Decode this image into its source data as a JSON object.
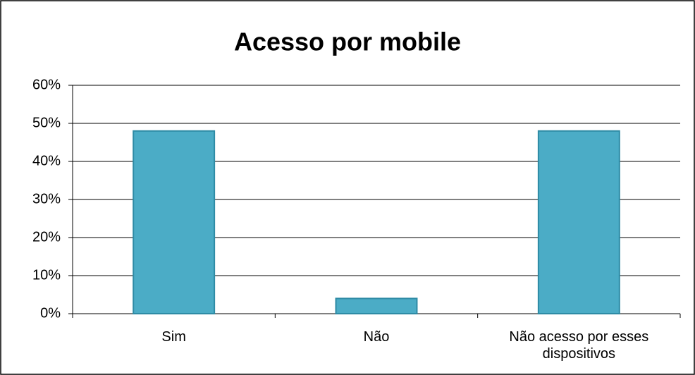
{
  "chart_data": {
    "type": "bar",
    "title": "Acesso por mobile",
    "categories": [
      "Sim",
      "Não",
      "Não acesso por esses dispositivos"
    ],
    "values": [
      48,
      4,
      48
    ],
    "color": "#4bacc6",
    "ylim": [
      0,
      60
    ],
    "yticks": [
      {
        "value": 0,
        "label": "0%"
      },
      {
        "value": 10,
        "label": "10%"
      },
      {
        "value": 20,
        "label": "20%"
      },
      {
        "value": 30,
        "label": "30%"
      },
      {
        "value": 40,
        "label": "40%"
      },
      {
        "value": 50,
        "label": "50%"
      },
      {
        "value": 60,
        "label": "60%"
      }
    ],
    "grid": true
  }
}
